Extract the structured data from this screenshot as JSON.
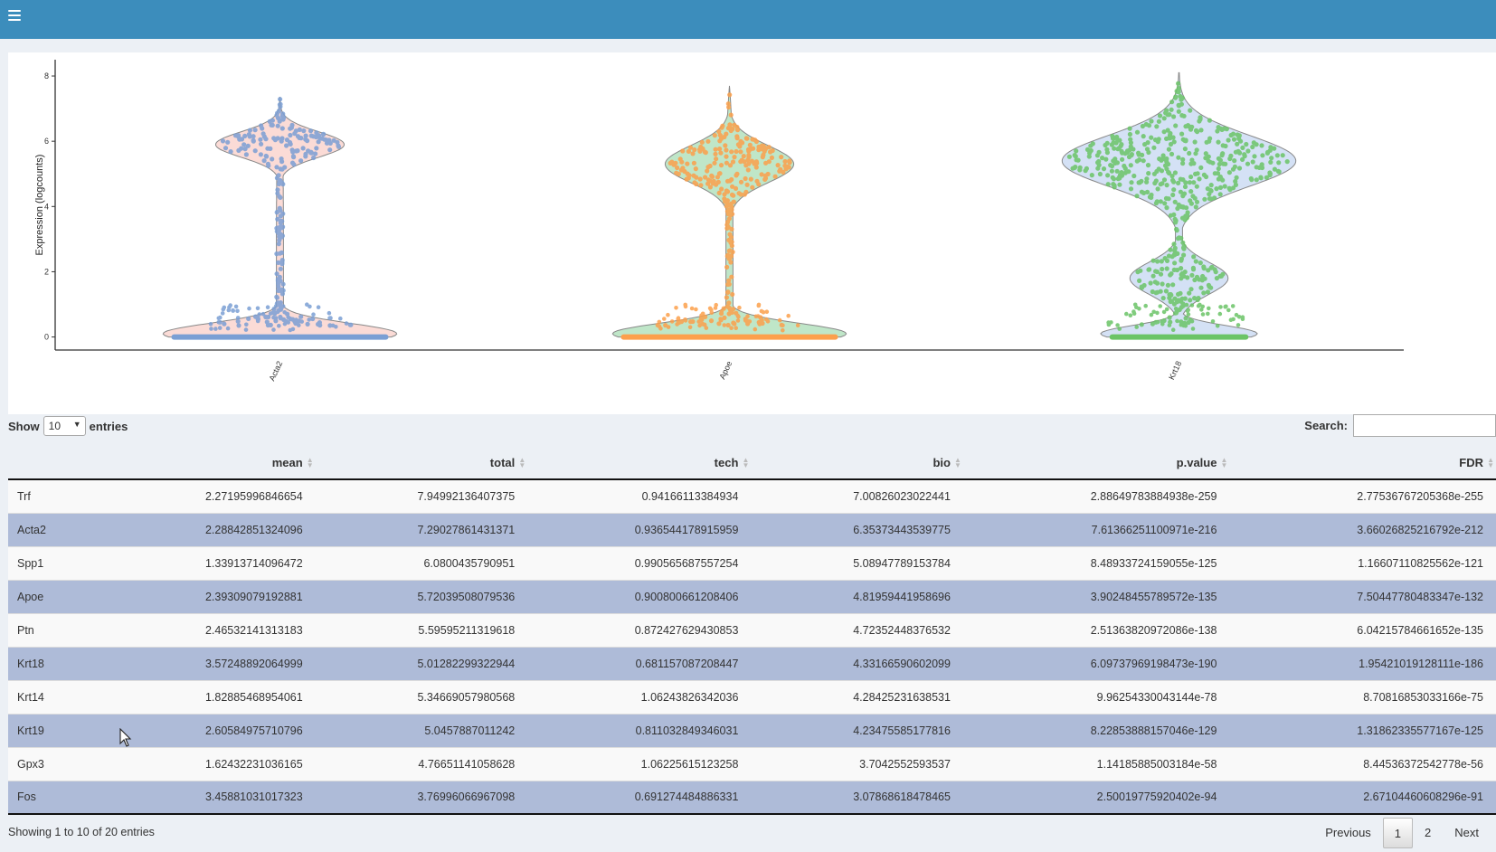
{
  "chart_data": {
    "type": "violin",
    "ylabel": "Expression (logcounts)",
    "y_ticks": [
      "0",
      "2",
      "4",
      "6",
      "8"
    ],
    "ylim": [
      -0.4,
      8.5
    ],
    "series": [
      {
        "category": "Acta2",
        "color": "#7b9fd4",
        "fill_low": "#fbdbd6",
        "max": 7.35,
        "bulges": [
          {
            "center": 5.9,
            "width": 0.55,
            "halfwidth": 0.55
          },
          {
            "center": 0.1,
            "width": 0.45,
            "halfwidth": 1.0
          }
        ]
      },
      {
        "category": "Apoe",
        "color": "#fca04c",
        "fill_low": "#bfe6c8",
        "max": 7.7,
        "bulges": [
          {
            "center": 5.3,
            "width": 0.8,
            "halfwidth": 0.55
          },
          {
            "center": 0.1,
            "width": 0.45,
            "halfwidth": 1.0
          }
        ]
      },
      {
        "category": "Krt18",
        "color": "#6bc467",
        "fill_low": "#d4e1f5",
        "max": 8.1,
        "bulges": [
          {
            "center": 5.4,
            "width": 1.1,
            "halfwidth": 1.0
          },
          {
            "center": 1.8,
            "width": 0.7,
            "halfwidth": 0.42
          },
          {
            "center": 0.1,
            "width": 0.35,
            "halfwidth": 0.67
          }
        ]
      }
    ]
  },
  "controls": {
    "show_label": "Show",
    "entries_value": "10",
    "entries_label": "entries",
    "search_label": "Search:",
    "search_value": ""
  },
  "table": {
    "columns": [
      "",
      "mean",
      "total",
      "tech",
      "bio",
      "p.value",
      "FDR"
    ],
    "rows": [
      [
        "Trf",
        "2.27195996846654",
        "7.94992136407375",
        "0.94166113384934",
        "7.00826023022441",
        "2.88649783884938e-259",
        "2.77536767205368e-255"
      ],
      [
        "Acta2",
        "2.28842851324096",
        "7.29027861431371",
        "0.936544178915959",
        "6.35373443539775",
        "7.61366251100971e-216",
        "3.66026825216792e-212"
      ],
      [
        "Spp1",
        "1.33913714096472",
        "6.0800435790951",
        "0.990565687557254",
        "5.08947789153784",
        "8.48933724159055e-125",
        "1.16607110825562e-121"
      ],
      [
        "Apoe",
        "2.39309079192881",
        "5.72039508079536",
        "0.900800661208406",
        "4.81959441958696",
        "3.90248455789572e-135",
        "7.50447780483347e-132"
      ],
      [
        "Ptn",
        "2.46532141313183",
        "5.59595211319618",
        "0.872427629430853",
        "4.72352448376532",
        "2.51363820972086e-138",
        "6.04215784661652e-135"
      ],
      [
        "Krt18",
        "3.57248892064999",
        "5.01282299322944",
        "0.681157087208447",
        "4.33166590602099",
        "6.09737969198473e-190",
        "1.95421019128111e-186"
      ],
      [
        "Krt14",
        "1.82885468954061",
        "5.34669057980568",
        "1.06243826342036",
        "4.28425231638531",
        "9.96254330043144e-78",
        "8.70816853033166e-75"
      ],
      [
        "Krt19",
        "2.60584975710796",
        "5.0457887011242",
        "0.811032849346031",
        "4.23475585177816",
        "8.22853888157046e-129",
        "1.31862335577167e-125"
      ],
      [
        "Gpx3",
        "1.62432231036165",
        "4.76651141058628",
        "1.06225615123258",
        "3.7042552593537",
        "1.14185885003184e-58",
        "8.44536372542778e-56"
      ],
      [
        "Fos",
        "3.45881031017323",
        "3.76996066967098",
        "0.691274484886331",
        "3.07868618478465",
        "2.50019775920402e-94",
        "2.67104460608296e-91"
      ]
    ]
  },
  "info": "Showing 1 to 10 of 20 entries",
  "pagination": {
    "previous": "Previous",
    "pages": [
      "1",
      "2"
    ],
    "current": "1",
    "next": "Next"
  }
}
